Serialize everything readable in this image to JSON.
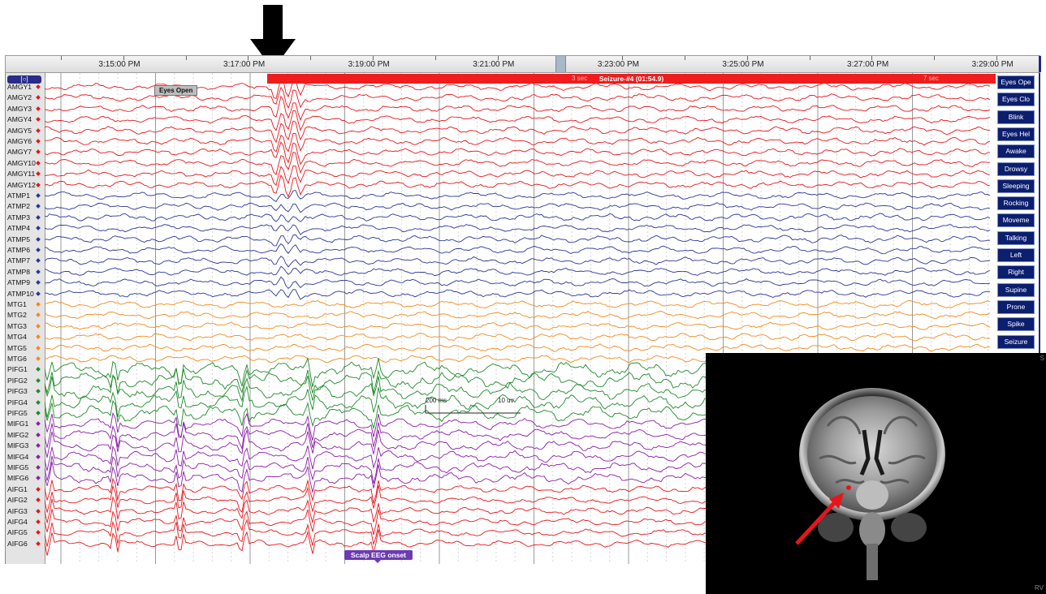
{
  "timeline": {
    "labels": [
      "3:15:00 PM",
      "3:17:00 PM",
      "3:19:00 PM",
      "3:21:00 PM",
      "3:23:00 PM",
      "3:25:00 PM",
      "3:27:00 PM",
      "3:29:00 PM"
    ]
  },
  "montage_button": "[○]",
  "seizure": {
    "label": "Seizure-#4 (01:54.9)",
    "left_text": "3 sec",
    "right_text": "7 sec"
  },
  "eyes_open_tag": "Eyes Open",
  "scalp_onset": "Scalp EEG onset",
  "scale": {
    "time": "200 ms",
    "amplitude": "10 uv"
  },
  "channel_groups": [
    {
      "color": "#e8151b",
      "labels": [
        "AMGY1",
        "AMGY2",
        "AMGY3",
        "AMGY4",
        "AMGY5",
        "AMGY6",
        "AMGY7",
        "AMGY10",
        "AMGY11",
        "AMGY12"
      ]
    },
    {
      "color": "#2a3596",
      "labels": [
        "ATMP1",
        "ATMP2",
        "ATMP3",
        "ATMP4",
        "ATMP5",
        "ATMP6",
        "ATMP7",
        "ATMP8",
        "ATMP9",
        "ATMP10"
      ]
    },
    {
      "color": "#f08a1c",
      "labels": [
        "MTG1",
        "MTG2",
        "MTG3",
        "MTG4",
        "MTG5",
        "MTG6"
      ]
    },
    {
      "color": "#1e8a2a",
      "labels": [
        "PIFG1",
        "PIFG2",
        "PIFG3",
        "PIFG4",
        "PIFG5"
      ]
    },
    {
      "color": "#8a1ea6",
      "labels": [
        "MIFG1",
        "MIFG2",
        "MIFG3",
        "MIFG4",
        "MIFG5",
        "MIFG6"
      ]
    },
    {
      "color": "#e8151b",
      "labels": [
        "AIFG1",
        "AIFG2",
        "AIFG3",
        "AIFG4",
        "AIFG5",
        "AIFG6"
      ]
    }
  ],
  "event_buttons": [
    "Eyes Ope",
    "Eyes Clo",
    "Blink",
    "Eyes Hel",
    "Awake",
    "Drowsy",
    "Sleeping",
    "Rocking",
    "Moveme",
    "Talking",
    "Left",
    "Right",
    "Supine",
    "Prone",
    "Spike",
    "Seizure"
  ],
  "mri": {
    "corner_top": "S",
    "corner_bottom": "RV"
  },
  "colors": {
    "arrow_black": "#000000",
    "arrow_red": "#e8151b",
    "panel_border": "#1a2a88"
  }
}
